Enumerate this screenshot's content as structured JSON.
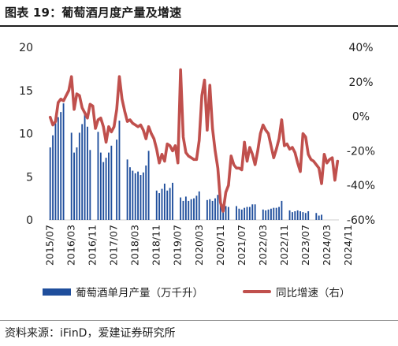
{
  "title": "图表 19：葡萄酒月度产量及增速",
  "source": "资料来源：iFinD，爱建证券研究所",
  "chart_data": {
    "type": "bar+line",
    "colors": {
      "bar": "#1f4e9c",
      "line": "#c0504d"
    },
    "y_left": {
      "ylim": [
        0,
        20
      ],
      "ticks": [
        "0",
        "5",
        "10",
        "15",
        "20"
      ]
    },
    "y_right": {
      "ylim": [
        -60,
        40
      ],
      "ticks": [
        "-60%",
        "-40%",
        "-20%",
        "0%",
        "20%",
        "40%"
      ]
    },
    "x_ticks": [
      "2015/07",
      "2016/03",
      "2016/11",
      "2017/07",
      "2018/03",
      "2018/11",
      "2019/07",
      "2020/03",
      "2020/11",
      "2021/07",
      "2022/03",
      "2022/11",
      "2023/07",
      "2024/03",
      "2024/11"
    ],
    "series": [
      {
        "name": "葡萄酒单月产量（万千升）",
        "type": "bar",
        "axis": "left",
        "values": [
          8.4,
          9.8,
          11.2,
          11.9,
          12.5,
          13.5,
          null,
          null,
          10.1,
          7.8,
          8.4,
          10.1,
          11.1,
          12.4,
          10.8,
          8.1,
          null,
          null,
          10.2,
          7.8,
          6.7,
          7.2,
          7.8,
          8.6,
          null,
          9.3,
          11.5,
          null,
          null,
          7.0,
          6.1,
          5.7,
          5.4,
          5.6,
          5.2,
          5.5,
          6.3,
          8.0,
          null,
          null,
          3.4,
          3.1,
          3.6,
          4.2,
          3.4,
          3.7,
          4.3,
          null,
          null,
          2.6,
          2.2,
          2.7,
          2.2,
          2.4,
          2.5,
          2.8,
          3.3,
          null,
          null,
          2.3,
          2.4,
          2.2,
          2.5,
          2.9,
          1.9,
          1.6,
          1.6,
          1.5,
          null,
          null,
          1.6,
          1.3,
          1.2,
          1.4,
          1.5,
          1.5,
          1.8,
          1.8,
          null,
          null,
          1.2,
          1.1,
          1.2,
          1.3,
          1.4,
          1.4,
          1.5,
          2.2,
          null,
          null,
          1.1,
          0.9,
          1.0,
          1.1,
          1.0,
          0.9,
          0.8,
          1.0,
          null,
          null,
          0.8,
          0.5,
          0.6
        ]
      },
      {
        "name": "同比增速（右）",
        "type": "line",
        "axis": "right",
        "values": [
          -0.5,
          -5,
          -3,
          8,
          10,
          9,
          12,
          15,
          23,
          4,
          13,
          12,
          5,
          2,
          -1,
          7,
          6,
          -7,
          -2,
          -1,
          -6,
          -15,
          -6,
          -9,
          -6,
          4,
          23,
          10,
          3,
          -3,
          -2,
          -4,
          -5,
          -6,
          -5,
          -8,
          -13,
          -6,
          -10,
          -13,
          -19,
          -27,
          -22,
          -26,
          -16,
          -17,
          -20,
          -17,
          -27,
          27,
          -12,
          -21,
          -23,
          -24,
          -25,
          -25,
          -14,
          12,
          21,
          -8,
          18,
          -7,
          -20,
          -30,
          -50,
          -55,
          -44,
          -40,
          -23,
          -28,
          -30,
          -30,
          -31,
          -15,
          -26,
          -18,
          -22,
          -28,
          -20,
          -10,
          -5,
          -8,
          -10,
          -17,
          -24,
          -19,
          -13,
          -2,
          -17,
          -16,
          -19,
          -18,
          -21,
          -27,
          -32,
          -10,
          -12,
          -22,
          -25,
          -26,
          -28,
          -30,
          -39,
          -22,
          -27,
          -25,
          -24,
          -37,
          -26
        ]
      }
    ]
  },
  "legend": {
    "bar_label": "葡萄酒单月产量（万千升）",
    "line_label": "同比增速（右）"
  }
}
